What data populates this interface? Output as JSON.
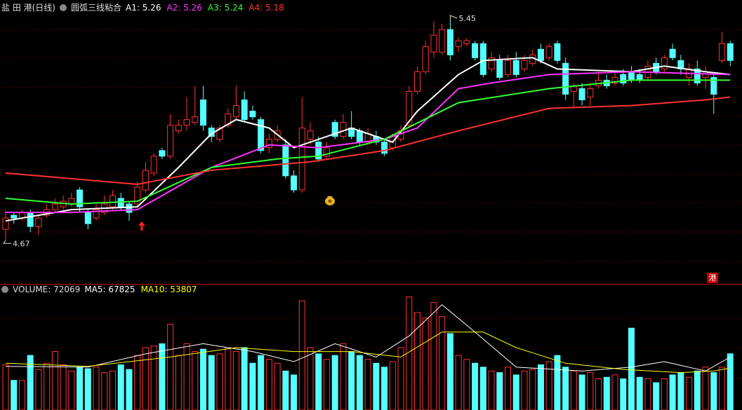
{
  "header": {
    "stock": "盐 田 港(日线)",
    "indicator": "圆弧三线粘合",
    "badge": "港"
  },
  "chart_data": [
    {
      "type": "candlestick",
      "ylim": [
        4.52,
        5.52
      ],
      "up_color": "#ff3232",
      "down_color": "#54ffff",
      "open": [
        4.71,
        4.76,
        4.75,
        4.77,
        4.72,
        4.76,
        4.78,
        4.79,
        4.8,
        4.85,
        4.77,
        4.75,
        4.77,
        4.79,
        4.82,
        4.8,
        4.8,
        4.85,
        4.91,
        4.99,
        4.97,
        5.06,
        5.08,
        5.09,
        5.17,
        5.07,
        5.03,
        5.08,
        5.11,
        5.17,
        5.13,
        5.1,
        5.0,
        5.03,
        5.01,
        4.9,
        4.85,
        5.03,
        5.02,
        4.97,
        5.09,
        5.04,
        5.07,
        5.06,
        5.02,
        5.04,
        5.02,
        5.0,
        5.03,
        5.08,
        5.2,
        5.27,
        5.34,
        5.34,
        5.42,
        5.36,
        5.37,
        5.37,
        5.37,
        5.28,
        5.31,
        5.26,
        5.31,
        5.28,
        5.3,
        5.35,
        5.32,
        5.37,
        5.3,
        5.2,
        5.21,
        5.18,
        5.22,
        5.24,
        5.23,
        5.26,
        5.27,
        5.26,
        5.25,
        5.3,
        5.28,
        5.35,
        5.31,
        5.25,
        5.28,
        5.25,
        5.25,
        5.31,
        5.37
      ],
      "high": [
        4.78,
        4.77,
        4.78,
        4.78,
        4.76,
        4.8,
        4.82,
        4.83,
        4.84,
        4.86,
        4.78,
        4.8,
        4.83,
        4.85,
        4.84,
        4.81,
        4.88,
        4.95,
        4.98,
        5.0,
        5.12,
        5.1,
        5.18,
        5.22,
        5.22,
        5.08,
        5.08,
        5.14,
        5.22,
        5.2,
        5.15,
        5.11,
        5.05,
        5.08,
        5.03,
        4.92,
        5.18,
        5.09,
        5.04,
        5.02,
        5.1,
        5.12,
        5.13,
        5.07,
        5.07,
        5.06,
        5.03,
        5.05,
        5.08,
        5.22,
        5.29,
        5.38,
        5.45,
        5.44,
        5.45,
        5.39,
        5.39,
        5.38,
        5.38,
        5.34,
        5.33,
        5.33,
        5.34,
        5.33,
        5.35,
        5.37,
        5.37,
        5.38,
        5.32,
        5.23,
        5.23,
        5.23,
        5.27,
        5.26,
        5.27,
        5.28,
        5.29,
        5.28,
        5.31,
        5.32,
        5.33,
        5.37,
        5.33,
        5.3,
        5.31,
        5.29,
        5.26,
        5.41,
        5.38
      ],
      "low": [
        4.67,
        4.73,
        4.74,
        4.7,
        4.69,
        4.75,
        4.77,
        4.78,
        4.79,
        4.77,
        4.71,
        4.74,
        4.76,
        4.78,
        4.78,
        4.74,
        4.79,
        4.84,
        4.9,
        4.96,
        4.96,
        5.05,
        5.06,
        5.08,
        5.06,
        5.02,
        5.02,
        5.07,
        5.1,
        5.09,
        5.1,
        4.98,
        4.98,
        5.02,
        4.89,
        4.84,
        4.84,
        5.01,
        4.95,
        4.96,
        5.03,
        5.03,
        5.03,
        5.01,
        5.01,
        5.01,
        4.97,
        4.99,
        5.02,
        5.07,
        5.19,
        5.26,
        5.32,
        5.33,
        5.31,
        5.34,
        5.36,
        5.31,
        5.25,
        5.27,
        5.24,
        5.25,
        5.25,
        5.27,
        5.29,
        5.3,
        5.31,
        5.3,
        5.17,
        5.14,
        5.15,
        5.15,
        5.21,
        5.21,
        5.22,
        5.22,
        5.23,
        5.23,
        5.24,
        5.26,
        5.27,
        5.31,
        5.26,
        5.22,
        5.22,
        5.21,
        5.12,
        5.3,
        5.29
      ],
      "close": [
        4.75,
        4.75,
        4.77,
        4.72,
        4.75,
        4.78,
        4.8,
        4.81,
        4.82,
        4.79,
        4.73,
        4.78,
        4.8,
        4.83,
        4.79,
        4.77,
        4.86,
        4.92,
        4.97,
        4.97,
        5.08,
        5.08,
        5.1,
        5.11,
        5.08,
        5.04,
        5.07,
        5.12,
        5.15,
        5.1,
        5.11,
        4.99,
        5.03,
        5.06,
        4.9,
        4.85,
        5.07,
        5.06,
        4.96,
        5.0,
        5.04,
        5.09,
        5.04,
        5.02,
        5.05,
        5.02,
        4.98,
        5.04,
        5.06,
        5.2,
        5.27,
        5.36,
        5.4,
        5.42,
        5.33,
        5.38,
        5.38,
        5.32,
        5.26,
        5.32,
        5.25,
        5.31,
        5.26,
        5.31,
        5.33,
        5.31,
        5.36,
        5.31,
        5.19,
        5.22,
        5.17,
        5.21,
        5.24,
        5.22,
        5.25,
        5.23,
        5.24,
        5.24,
        5.29,
        5.27,
        5.32,
        5.32,
        5.28,
        5.28,
        5.23,
        5.27,
        5.19,
        5.37,
        5.31
      ],
      "max_label": {
        "index": 54,
        "value": 5.45
      },
      "min_label": {
        "index": 0,
        "value": 4.67
      },
      "lines": [
        {
          "name": "A1",
          "color": "#ffffff",
          "current": 5.26,
          "x": [
            0,
            8,
            16,
            21,
            25,
            28,
            32,
            35,
            42,
            47,
            50,
            55,
            58,
            64,
            67,
            76,
            80,
            85,
            88
          ],
          "values": [
            4.74,
            4.78,
            4.79,
            4.93,
            5.05,
            5.1,
            5.07,
            5.0,
            5.07,
            5.02,
            5.13,
            5.26,
            5.31,
            5.32,
            5.28,
            5.27,
            5.29,
            5.27,
            5.26
          ]
        },
        {
          "name": "A2",
          "color": "#ff33ff",
          "current": 5.26,
          "x": [
            0,
            8,
            16,
            25,
            32,
            38,
            46,
            50,
            55,
            59,
            66,
            76,
            88
          ],
          "values": [
            4.77,
            4.77,
            4.78,
            4.93,
            5.01,
            5.0,
            5.03,
            5.07,
            5.21,
            5.23,
            5.26,
            5.27,
            5.26
          ]
        },
        {
          "name": "A3",
          "color": "#33ff33",
          "current": 5.24,
          "x": [
            0,
            8,
            16,
            25,
            33,
            38,
            46,
            55,
            66,
            76,
            88
          ],
          "values": [
            4.82,
            4.8,
            4.81,
            4.93,
            4.96,
            4.97,
            5.03,
            5.16,
            5.21,
            5.24,
            5.24
          ]
        },
        {
          "name": "A4",
          "color": "#ff3232",
          "current": 5.18,
          "x": [
            0,
            8,
            16,
            25,
            37,
            46,
            55,
            66,
            76,
            85,
            88
          ],
          "values": [
            4.91,
            4.89,
            4.87,
            4.92,
            4.95,
            4.99,
            5.06,
            5.14,
            5.15,
            5.17,
            5.18
          ]
        }
      ]
    },
    {
      "type": "bar",
      "title": "VOLUME",
      "current": 72069,
      "ylim": [
        0,
        160000
      ],
      "values": [
        58000,
        38000,
        38000,
        70000,
        52000,
        60000,
        75000,
        58000,
        50000,
        55000,
        53000,
        55000,
        48000,
        50000,
        58000,
        52000,
        70000,
        80000,
        82000,
        85000,
        110000,
        70000,
        85000,
        75000,
        78000,
        70000,
        72000,
        80000,
        75000,
        80000,
        60000,
        70000,
        65000,
        60000,
        50000,
        45000,
        140000,
        80000,
        72000,
        65000,
        70000,
        85000,
        75000,
        70000,
        65000,
        60000,
        55000,
        62000,
        80000,
        145000,
        125000,
        118000,
        138000,
        120000,
        98000,
        70000,
        65000,
        60000,
        55000,
        50000,
        48000,
        55000,
        45000,
        50000,
        52000,
        58000,
        62000,
        70000,
        55000,
        50000,
        45000,
        48000,
        40000,
        42000,
        45000,
        40000,
        105000,
        42000,
        40000,
        35000,
        40000,
        45000,
        48000,
        42000,
        50000,
        55000,
        48000,
        55000,
        72069
      ],
      "series": [
        {
          "name": "MA5",
          "color": "#ffffff",
          "current": 67825,
          "x": [
            0,
            10,
            17,
            24,
            30,
            35,
            40,
            45,
            49,
            53,
            57,
            62,
            70,
            76,
            80,
            85,
            88
          ],
          "values": [
            56000,
            55000,
            72000,
            85000,
            75000,
            62000,
            85000,
            68000,
            95000,
            135000,
            100000,
            55000,
            50000,
            55000,
            62000,
            50000,
            67825
          ]
        },
        {
          "name": "MA10",
          "color": "#ffff00",
          "current": 53807,
          "x": [
            0,
            10,
            20,
            28,
            35,
            42,
            48,
            53,
            58,
            62,
            68,
            75,
            82,
            86,
            88
          ],
          "values": [
            60000,
            56000,
            68000,
            80000,
            75000,
            75000,
            68000,
            100000,
            100000,
            80000,
            60000,
            52000,
            48000,
            50000,
            53807
          ]
        }
      ]
    }
  ]
}
